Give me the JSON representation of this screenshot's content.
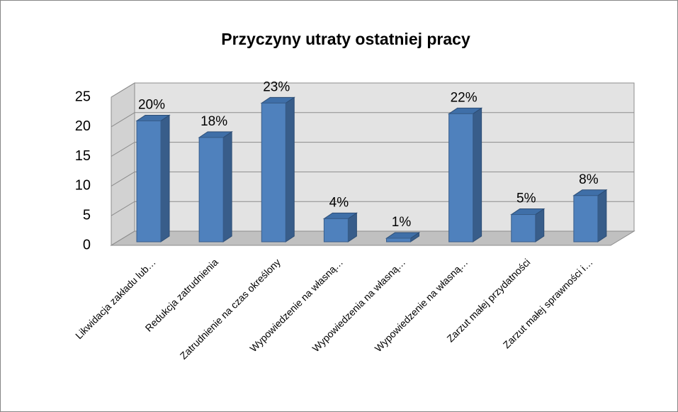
{
  "chart_data": {
    "type": "bar3d",
    "title": "Przyczyny utraty ostatniej pracy",
    "categories": [
      "Likwidacja zakładu lub…",
      "Redukcja zatrudnienia",
      "Zatrudnienie na czas określony",
      "Wypowiedzenie na własną…",
      "Wypowiedzenia na własną…",
      "Wypowiedzenie na własną…",
      "Zarzut małej przydatności",
      "Zarzut małej sprawności i…"
    ],
    "values": [
      20.4,
      17.6,
      23.4,
      3.9,
      0.6,
      21.6,
      4.6,
      7.8
    ],
    "value_labels": [
      "20%",
      "18%",
      "23%",
      "4%",
      "1%",
      "22%",
      "5%",
      "8%"
    ],
    "color": "#4f81bd",
    "ylim": [
      0,
      25
    ],
    "yticks": [
      0,
      5,
      10,
      15,
      20,
      25
    ],
    "grid": true
  }
}
